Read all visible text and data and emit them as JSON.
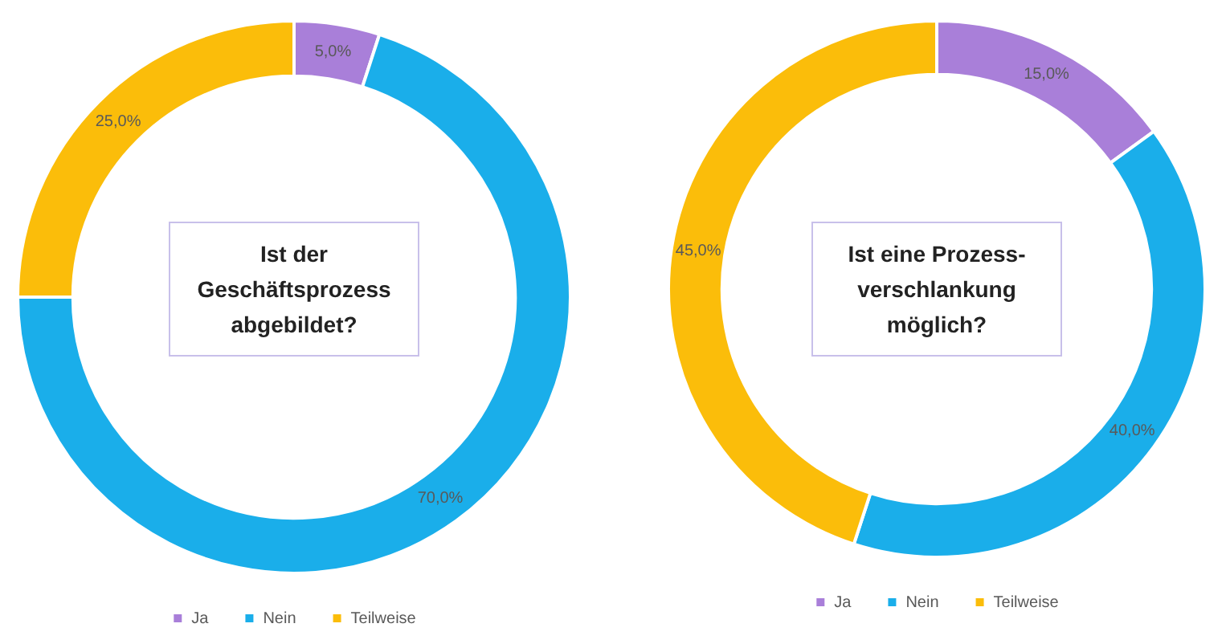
{
  "chart_data": [
    {
      "type": "donut",
      "title": "Ist der Geschäftsprozess abgebildet?",
      "categories": [
        "Ja",
        "Nein",
        "Teilweise"
      ],
      "values": [
        5,
        70,
        25
      ],
      "colors": [
        "#a97fd9",
        "#1aaeea",
        "#fbbd0a"
      ],
      "value_labels": [
        "5,0%",
        "70,0%",
        "25,0%"
      ],
      "legend": "bottom"
    },
    {
      "type": "donut",
      "title": "Ist eine Prozess-verschlankung möglich?",
      "categories": [
        "Ja",
        "Nein",
        "Teilweise"
      ],
      "values": [
        15,
        40,
        45
      ],
      "colors": [
        "#a97fd9",
        "#1aaeea",
        "#fbbd0a"
      ],
      "value_labels": [
        "15,0%",
        "40,0%",
        "45,0%"
      ],
      "legend": "bottom"
    }
  ]
}
